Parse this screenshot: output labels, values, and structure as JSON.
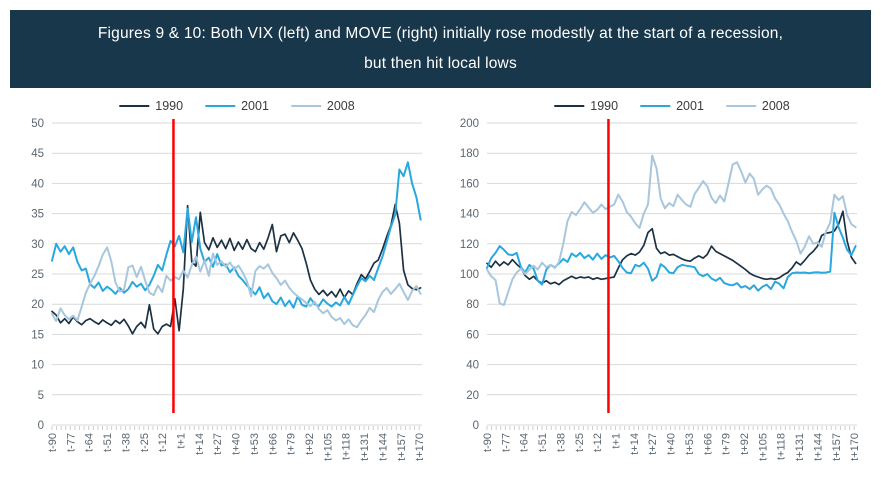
{
  "header": {
    "line1": "Figures 9 & 10: Both VIX (left) and MOVE (right) initially rose modestly at the start of a recession,",
    "line2": "but then hit local lows",
    "bg_color": "#18374B",
    "text_color": "#FFFFFF"
  },
  "colors": {
    "1990": "#1C3144",
    "2001": "#29A8E0",
    "2008": "#A8C6DC",
    "red_line": "#FF0000",
    "grid": "#D9D9D9",
    "minor_tick": "#C9CED4",
    "axis_text": "#5B6670"
  },
  "chart_data": [
    {
      "type": "line",
      "name": "VIX",
      "position": "left",
      "legend": [
        "1990",
        "2001",
        "2008"
      ],
      "x_domain": [
        -90,
        172
      ],
      "t_step": 3,
      "x_tick_labels": [
        "t-90",
        "t-77",
        "t-64",
        "t-51",
        "t-38",
        "t-25",
        "t-12",
        "t+1",
        "t+14",
        "t+27",
        "t+40",
        "t+53",
        "t+66",
        "t+79",
        "t+92",
        "t+105",
        "t+118",
        "t+131",
        "t+144",
        "t+157",
        "t+170"
      ],
      "ylim": [
        0,
        50
      ],
      "y_ticks": [
        0,
        5,
        10,
        15,
        20,
        25,
        30,
        35,
        40,
        45,
        50
      ],
      "red_line_t": -4,
      "grid": true,
      "series": [
        {
          "name": "1990",
          "values": [
            18.8,
            18.2,
            16.9,
            17.6,
            16.8,
            17.9,
            17.1,
            16.6,
            17.3,
            17.6,
            17.1,
            16.7,
            17.4,
            16.9,
            16.5,
            17.3,
            16.8,
            17.5,
            16.4,
            15.1,
            16.3,
            17.0,
            16.1,
            19.9,
            15.9,
            15.1,
            16.3,
            16.7,
            16.3,
            20.9,
            15.6,
            22.5,
            36.3,
            27.0,
            26.3,
            35.2,
            30.2,
            29.0,
            31.0,
            29.4,
            30.6,
            29.2,
            30.9,
            28.9,
            30.3,
            29.1,
            30.7,
            29.2,
            28.7,
            30.2,
            29.1,
            31.0,
            33.2,
            28.7,
            31.3,
            31.6,
            30.2,
            31.8,
            30.6,
            29.2,
            26.8,
            24.0,
            22.5,
            21.6,
            22.3,
            21.4,
            22.1,
            21.2,
            22.5,
            21.1,
            22.2,
            21.6,
            23.4,
            24.9,
            24.2,
            25.4,
            26.8,
            27.3,
            29.1,
            31.2,
            33.0,
            36.5,
            33.4,
            25.6,
            23.2,
            22.6,
            22.4,
            22.7
          ]
        },
        {
          "name": "2001",
          "values": [
            27.2,
            30.0,
            28.7,
            29.6,
            28.3,
            29.4,
            27.0,
            25.6,
            25.9,
            23.3,
            22.7,
            23.6,
            22.2,
            22.9,
            22.4,
            21.7,
            22.7,
            21.9,
            22.5,
            23.7,
            22.9,
            23.4,
            22.3,
            23.2,
            24.7,
            26.5,
            25.6,
            28.2,
            30.5,
            29.6,
            31.3,
            28.6,
            35.8,
            30.3,
            34.4,
            29.2,
            27.0,
            27.7,
            26.2,
            28.3,
            26.4,
            26.6,
            25.3,
            26.1,
            24.7,
            24.0,
            23.1,
            22.4,
            21.6,
            22.8,
            21.0,
            21.8,
            20.5,
            20.0,
            21.1,
            19.7,
            20.6,
            19.4,
            21.3,
            19.9,
            19.6,
            21.0,
            20.0,
            19.7,
            20.8,
            20.1,
            19.6,
            20.3,
            19.8,
            21.2,
            20.0,
            21.5,
            23.0,
            24.3,
            23.8,
            24.7,
            24.0,
            26.0,
            27.9,
            30.3,
            32.8,
            34.8,
            42.3,
            41.2,
            43.5,
            40.0,
            37.7,
            34.0
          ]
        },
        {
          "name": "2008",
          "values": [
            18.4,
            17.2,
            19.3,
            18.2,
            17.5,
            18.1,
            17.3,
            19.6,
            21.9,
            23.4,
            24.7,
            26.3,
            28.2,
            29.4,
            27.1,
            23.6,
            22.1,
            22.4,
            26.1,
            26.4,
            24.5,
            26.2,
            23.9,
            21.9,
            21.5,
            23.1,
            22.0,
            24.7,
            23.9,
            24.5,
            24.1,
            25.6,
            24.4,
            26.5,
            27.9,
            25.4,
            27.2,
            24.7,
            28.4,
            26.5,
            27.1,
            26.2,
            26.9,
            25.8,
            26.4,
            25.3,
            23.8,
            21.3,
            25.5,
            26.3,
            25.9,
            26.6,
            25.2,
            24.3,
            23.2,
            23.9,
            22.7,
            21.9,
            21.3,
            20.8,
            20.2,
            19.7,
            20.4,
            19.2,
            18.5,
            19.0,
            17.9,
            17.3,
            17.7,
            16.7,
            17.5,
            16.5,
            16.2,
            17.3,
            18.2,
            19.4,
            18.7,
            20.7,
            22.0,
            22.7,
            21.7,
            22.5,
            23.4,
            22.0,
            20.7,
            22.2,
            23.0,
            21.7
          ]
        }
      ]
    },
    {
      "type": "line",
      "name": "MOVE",
      "position": "right",
      "legend": [
        "1990",
        "2001",
        "2008"
      ],
      "x_domain": [
        -90,
        172
      ],
      "t_step": 3,
      "x_tick_labels": [
        "t-90",
        "t-77",
        "t-64",
        "t-51",
        "t-38",
        "t-25",
        "t-12",
        "t+1",
        "t+14",
        "t+27",
        "t+40",
        "t+53",
        "t+66",
        "t+79",
        "t+92",
        "t+105",
        "t+118",
        "t+131",
        "t+144",
        "t+157",
        "t+170"
      ],
      "ylim": [
        0,
        200
      ],
      "y_ticks": [
        0,
        20,
        40,
        60,
        80,
        100,
        120,
        140,
        160,
        180,
        200
      ],
      "red_line_t": -4,
      "grid": true,
      "series": [
        {
          "name": "1990",
          "values": [
            107,
            104.5,
            108.5,
            105.5,
            108,
            106,
            109.5,
            106.5,
            104,
            99,
            96.5,
            98.5,
            95.5,
            94,
            95.5,
            93.5,
            94.5,
            93,
            95.5,
            97,
            98.5,
            97,
            98,
            97.5,
            98,
            96.5,
            97.5,
            96.5,
            97,
            97.5,
            98,
            104,
            109.5,
            112,
            113.5,
            112.5,
            114.5,
            119,
            127.5,
            130,
            117,
            113.5,
            114.5,
            112.5,
            113,
            111.5,
            110,
            109,
            108.5,
            110.5,
            112,
            110.5,
            113,
            118.5,
            115,
            113.5,
            112,
            110.5,
            109,
            107,
            105,
            103,
            100.5,
            99,
            98,
            97,
            96.5,
            97,
            96.5,
            97.5,
            99.5,
            101,
            104,
            108,
            106,
            109,
            112.5,
            115,
            118.5,
            125.5,
            127,
            127.5,
            128.5,
            133,
            141.5,
            122,
            111,
            107
          ]
        },
        {
          "name": "2001",
          "values": [
            104,
            110.5,
            114,
            118.5,
            116,
            113,
            112.5,
            114,
            104.5,
            101,
            106,
            103.5,
            95.5,
            93,
            103,
            106,
            104.5,
            107,
            110,
            108,
            113.5,
            111.5,
            114,
            110.5,
            112.5,
            109.5,
            113.5,
            110,
            112.5,
            111,
            112,
            108.5,
            104,
            101,
            100.5,
            106,
            105,
            107.5,
            103.5,
            95.5,
            98,
            106.5,
            104.5,
            101,
            100.5,
            104.5,
            106,
            105.5,
            105,
            104.5,
            100,
            98.5,
            100,
            97,
            95.5,
            97.5,
            94,
            93,
            92.5,
            94,
            91,
            92,
            90,
            92.5,
            89,
            91.5,
            93,
            90,
            95,
            93.5,
            90.5,
            98,
            100.5,
            101,
            100.8,
            101,
            100.5,
            101,
            101.2,
            100.8,
            101,
            101.5,
            140.5,
            131,
            124,
            116,
            112.5,
            118.5
          ]
        },
        {
          "name": "2008",
          "values": [
            103,
            98.5,
            96,
            80.5,
            79.5,
            88,
            96.5,
            101,
            103.5,
            100,
            103,
            105.5,
            103,
            107.5,
            104.5,
            106,
            104,
            108,
            120,
            135,
            141,
            139,
            143,
            147.5,
            144,
            140.5,
            142.5,
            146,
            143,
            144.5,
            146,
            152.5,
            148,
            141,
            138,
            133.5,
            130.5,
            140,
            146,
            178.5,
            170,
            150,
            143.5,
            147,
            145,
            152.5,
            149,
            146,
            144.5,
            153,
            157,
            161.5,
            158,
            150.5,
            147,
            152,
            148,
            160,
            172.5,
            174,
            168,
            160.5,
            166.5,
            163,
            152.5,
            156,
            158.5,
            156.5,
            150,
            146,
            140,
            135,
            128,
            122,
            113.5,
            118,
            125,
            120,
            121,
            118,
            128,
            134,
            152.5,
            149,
            151.5,
            139,
            133,
            131
          ]
        }
      ]
    }
  ]
}
